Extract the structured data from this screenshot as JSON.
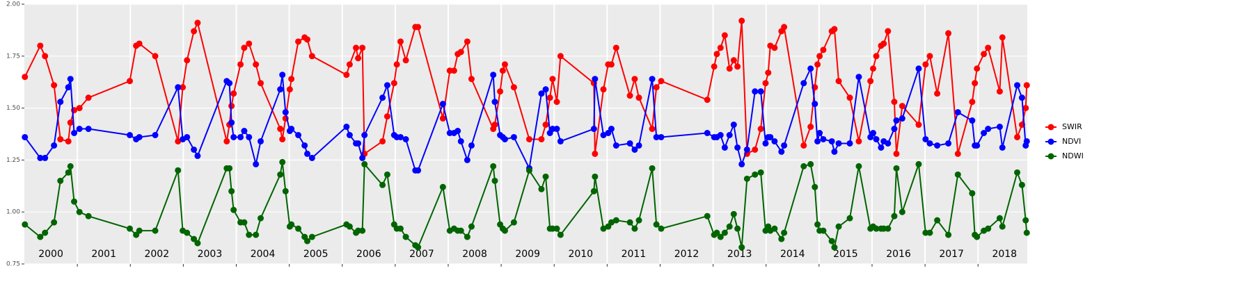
{
  "chart_data": {
    "type": "line",
    "x": [
      2000.01,
      2000.3,
      2000.39,
      2000.56,
      2000.68,
      2000.83,
      2000.87,
      2000.94,
      2001.04,
      2001.21,
      2001.99,
      2002.11,
      2002.17,
      2002.47,
      2002.9,
      2002.99,
      2003.07,
      2003.2,
      2003.27,
      2003.82,
      2003.87,
      2003.91,
      2003.95,
      2004.08,
      2004.15,
      2004.24,
      2004.37,
      2004.46,
      2004.83,
      2004.87,
      2004.93,
      2005.01,
      2005.04,
      2005.17,
      2005.29,
      2005.34,
      2005.43,
      2006.08,
      2006.14,
      2006.26,
      2006.3,
      2006.38,
      2006.42,
      2006.76,
      2006.85,
      2006.98,
      2007.03,
      2007.1,
      2007.2,
      2007.38,
      2007.43,
      2007.9,
      2008.03,
      2008.11,
      2008.18,
      2008.24,
      2008.36,
      2008.44,
      2008.85,
      2008.88,
      2008.98,
      2009.03,
      2009.07,
      2009.24,
      2009.53,
      2009.76,
      2009.84,
      2009.92,
      2009.97,
      2010.05,
      2010.12,
      2010.75,
      2010.77,
      2010.93,
      2011.02,
      2011.08,
      2011.17,
      2011.43,
      2011.52,
      2011.6,
      2011.85,
      2011.93,
      2012.02,
      2012.89,
      2013.02,
      2013.07,
      2013.14,
      2013.22,
      2013.31,
      2013.39,
      2013.46,
      2013.54,
      2013.64,
      2013.79,
      2013.9,
      2013.99,
      2014.04,
      2014.08,
      2014.16,
      2014.29,
      2014.34,
      2014.71,
      2014.84,
      2014.92,
      2014.97,
      2015.01,
      2015.08,
      2015.24,
      2015.29,
      2015.37,
      2015.58,
      2015.75,
      2015.97,
      2016.02,
      2016.08,
      2016.17,
      2016.22,
      2016.3,
      2016.42,
      2016.46,
      2016.57,
      2016.88,
      2017.01,
      2017.09,
      2017.23,
      2017.44,
      2017.62,
      2017.89,
      2017.94,
      2017.98,
      2018.11,
      2018.19,
      2018.41,
      2018.46,
      2018.74,
      2018.83,
      2018.9,
      2018.92
    ],
    "series": [
      {
        "name": "SWIR",
        "color": "#ff0000",
        "values": [
          1.65,
          1.8,
          1.75,
          1.61,
          1.35,
          1.34,
          1.43,
          1.49,
          1.5,
          1.55,
          1.63,
          1.8,
          1.81,
          1.75,
          1.34,
          1.6,
          1.73,
          1.87,
          1.91,
          1.34,
          1.42,
          1.51,
          1.57,
          1.71,
          1.79,
          1.81,
          1.71,
          1.62,
          1.4,
          1.35,
          1.45,
          1.59,
          1.64,
          1.82,
          1.84,
          1.83,
          1.75,
          1.66,
          1.71,
          1.79,
          1.74,
          1.79,
          1.28,
          1.34,
          1.46,
          1.62,
          1.71,
          1.82,
          1.73,
          1.89,
          1.89,
          1.45,
          1.68,
          1.68,
          1.76,
          1.77,
          1.82,
          1.64,
          1.4,
          1.42,
          1.58,
          1.68,
          1.71,
          1.6,
          1.35,
          1.35,
          1.42,
          1.55,
          1.64,
          1.53,
          1.75,
          1.62,
          1.28,
          1.59,
          1.71,
          1.71,
          1.79,
          1.56,
          1.64,
          1.55,
          1.4,
          1.6,
          1.63,
          1.54,
          1.7,
          1.76,
          1.79,
          1.85,
          1.69,
          1.73,
          1.7,
          1.92,
          1.28,
          1.3,
          1.4,
          1.62,
          1.67,
          1.8,
          1.79,
          1.87,
          1.89,
          1.32,
          1.41,
          1.6,
          1.71,
          1.75,
          1.78,
          1.87,
          1.88,
          1.63,
          1.55,
          1.34,
          1.63,
          1.69,
          1.75,
          1.8,
          1.81,
          1.87,
          1.53,
          1.28,
          1.51,
          1.42,
          1.71,
          1.75,
          1.57,
          1.86,
          1.28,
          1.53,
          1.62,
          1.69,
          1.76,
          1.79,
          1.58,
          1.84,
          1.36,
          1.42,
          1.5,
          1.61
        ]
      },
      {
        "name": "NDVI",
        "color": "#0000ff",
        "values": [
          1.36,
          1.26,
          1.26,
          1.32,
          1.53,
          1.6,
          1.64,
          1.38,
          1.4,
          1.4,
          1.37,
          1.35,
          1.36,
          1.37,
          1.6,
          1.35,
          1.36,
          1.3,
          1.27,
          1.63,
          1.62,
          1.43,
          1.36,
          1.36,
          1.39,
          1.36,
          1.23,
          1.34,
          1.59,
          1.66,
          1.48,
          1.39,
          1.4,
          1.37,
          1.32,
          1.28,
          1.26,
          1.41,
          1.37,
          1.33,
          1.33,
          1.26,
          1.37,
          1.55,
          1.61,
          1.37,
          1.36,
          1.36,
          1.35,
          1.2,
          1.2,
          1.52,
          1.38,
          1.38,
          1.39,
          1.34,
          1.25,
          1.32,
          1.66,
          1.53,
          1.37,
          1.36,
          1.35,
          1.36,
          1.21,
          1.57,
          1.59,
          1.38,
          1.4,
          1.4,
          1.34,
          1.4,
          1.64,
          1.37,
          1.38,
          1.4,
          1.32,
          1.33,
          1.3,
          1.32,
          1.64,
          1.36,
          1.36,
          1.38,
          1.36,
          1.36,
          1.37,
          1.31,
          1.37,
          1.42,
          1.31,
          1.23,
          1.3,
          1.58,
          1.58,
          1.33,
          1.36,
          1.36,
          1.34,
          1.29,
          1.32,
          1.62,
          1.69,
          1.52,
          1.34,
          1.38,
          1.35,
          1.34,
          1.29,
          1.33,
          1.33,
          1.65,
          1.36,
          1.38,
          1.35,
          1.31,
          1.34,
          1.33,
          1.4,
          1.44,
          1.45,
          1.69,
          1.35,
          1.33,
          1.32,
          1.33,
          1.48,
          1.44,
          1.32,
          1.32,
          1.38,
          1.4,
          1.41,
          1.31,
          1.61,
          1.55,
          1.32,
          1.34
        ]
      },
      {
        "name": "NDWI",
        "color": "#006400",
        "values": [
          0.94,
          0.88,
          0.9,
          0.95,
          1.15,
          1.19,
          1.22,
          1.05,
          1.0,
          0.98,
          0.92,
          0.89,
          0.91,
          0.91,
          1.2,
          0.91,
          0.9,
          0.87,
          0.85,
          1.21,
          1.21,
          1.1,
          1.01,
          0.95,
          0.95,
          0.89,
          0.89,
          0.97,
          1.18,
          1.24,
          1.1,
          0.93,
          0.94,
          0.92,
          0.88,
          0.86,
          0.88,
          0.94,
          0.93,
          0.9,
          0.91,
          0.91,
          1.23,
          1.13,
          1.18,
          0.94,
          0.92,
          0.92,
          0.88,
          0.84,
          0.83,
          1.12,
          0.91,
          0.92,
          0.91,
          0.91,
          0.88,
          0.93,
          1.22,
          1.15,
          0.94,
          0.92,
          0.91,
          0.95,
          1.2,
          1.11,
          1.17,
          0.92,
          0.92,
          0.92,
          0.89,
          1.1,
          1.17,
          0.92,
          0.93,
          0.95,
          0.96,
          0.95,
          0.92,
          0.96,
          1.21,
          0.94,
          0.92,
          0.98,
          0.89,
          0.9,
          0.88,
          0.9,
          0.93,
          0.99,
          0.92,
          0.83,
          1.16,
          1.18,
          1.19,
          0.91,
          0.93,
          0.91,
          0.92,
          0.87,
          0.9,
          1.22,
          1.23,
          1.12,
          0.94,
          0.91,
          0.91,
          0.86,
          0.83,
          0.93,
          0.97,
          1.22,
          0.92,
          0.93,
          0.92,
          0.92,
          0.92,
          0.92,
          0.98,
          1.21,
          1.0,
          1.23,
          0.9,
          0.9,
          0.96,
          0.89,
          1.18,
          1.09,
          0.89,
          0.88,
          0.91,
          0.92,
          0.97,
          0.93,
          1.19,
          1.13,
          0.96,
          0.9
        ]
      }
    ],
    "xlim": [
      2000.0,
      2018.93
    ],
    "xticks": [
      {
        "value": 2000.5,
        "label": "2000"
      },
      {
        "value": 2001.5,
        "label": "2001"
      },
      {
        "value": 2002.5,
        "label": "2002"
      },
      {
        "value": 2003.5,
        "label": "2003"
      },
      {
        "value": 2004.5,
        "label": "2004"
      },
      {
        "value": 2005.5,
        "label": "2005"
      },
      {
        "value": 2006.5,
        "label": "2006"
      },
      {
        "value": 2007.5,
        "label": "2007"
      },
      {
        "value": 2008.5,
        "label": "2008"
      },
      {
        "value": 2009.5,
        "label": "2009"
      },
      {
        "value": 2010.5,
        "label": "2010"
      },
      {
        "value": 2011.5,
        "label": "2011"
      },
      {
        "value": 2012.5,
        "label": "2012"
      },
      {
        "value": 2013.5,
        "label": "2013"
      },
      {
        "value": 2014.5,
        "label": "2014"
      },
      {
        "value": 2015.5,
        "label": "2015"
      },
      {
        "value": 2016.5,
        "label": "2016"
      },
      {
        "value": 2017.5,
        "label": "2017"
      },
      {
        "value": 2018.5,
        "label": "2018"
      }
    ],
    "year_boundaries": [
      2001,
      2002,
      2003,
      2004,
      2005,
      2006,
      2007,
      2008,
      2009,
      2010,
      2011,
      2012,
      2013,
      2014,
      2015,
      2016,
      2017,
      2018
    ],
    "ylim": [
      0.75,
      2.0
    ],
    "yticks": [
      {
        "value": 0.75,
        "label": "0.75"
      },
      {
        "value": 1.0,
        "label": "1.00"
      },
      {
        "value": 1.25,
        "label": "1.25"
      },
      {
        "value": 1.5,
        "label": "1.50"
      },
      {
        "value": 1.75,
        "label": "1.75"
      },
      {
        "value": 2.0,
        "label": "2.00"
      }
    ],
    "grid": true,
    "legend": "right"
  }
}
